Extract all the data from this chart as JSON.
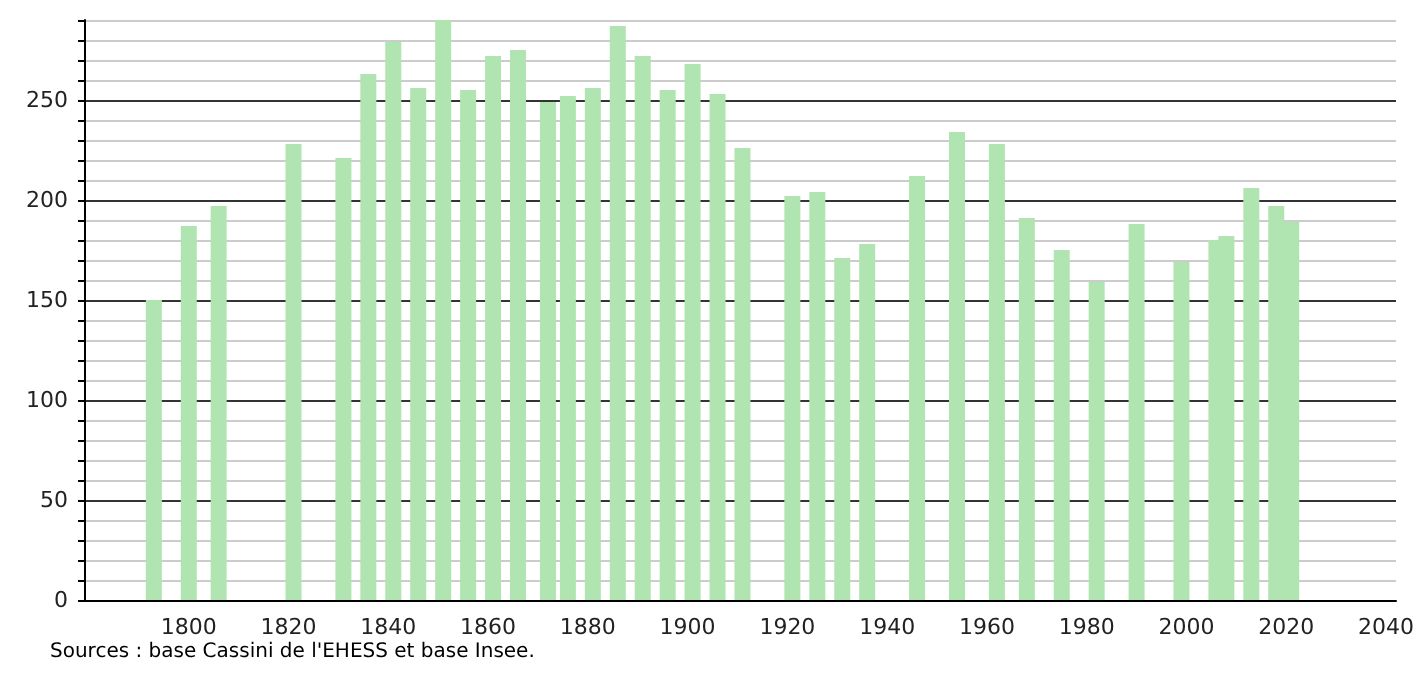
{
  "chart_data": {
    "type": "bar",
    "x": [
      1793,
      1800,
      1806,
      1821,
      1831,
      1836,
      1841,
      1846,
      1851,
      1856,
      1861,
      1866,
      1872,
      1876,
      1881,
      1886,
      1891,
      1896,
      1901,
      1906,
      1911,
      1921,
      1926,
      1931,
      1936,
      1946,
      1954,
      1962,
      1968,
      1975,
      1982,
      1990,
      1999,
      2006,
      2008,
      2013,
      2018,
      2021
    ],
    "values": [
      150,
      187,
      197,
      228,
      221,
      263,
      279,
      256,
      290,
      255,
      272,
      275,
      249,
      252,
      256,
      287,
      272,
      255,
      268,
      253,
      226,
      202,
      204,
      171,
      178,
      212,
      234,
      228,
      191,
      175,
      159,
      188,
      169,
      180,
      182,
      206,
      197,
      189
    ],
    "color": "#b0e4b0",
    "xlim": [
      1779,
      2042
    ],
    "xticks": [
      1800,
      1820,
      1840,
      1860,
      1880,
      1900,
      1920,
      1940,
      1960,
      1980,
      2000,
      2020,
      2040
    ],
    "ylim": [
      0,
      290
    ],
    "yticks": [
      0,
      {
        "value": 10,
        "label": null
      },
      {
        "value": 20,
        "label": null
      },
      {
        "value": 30,
        "label": null
      },
      {
        "value": 40,
        "label": null
      },
      50,
      {
        "value": 60,
        "label": null
      },
      {
        "value": 70,
        "label": null
      },
      {
        "value": 80,
        "label": null
      },
      {
        "value": 90,
        "label": null
      },
      100,
      {
        "value": 110,
        "label": null
      },
      {
        "value": 120,
        "label": null
      },
      {
        "value": 130,
        "label": null
      },
      {
        "value": 140,
        "label": null
      },
      150,
      {
        "value": 160,
        "label": null
      },
      {
        "value": 170,
        "label": null
      },
      {
        "value": 180,
        "label": null
      },
      {
        "value": 190,
        "label": null
      },
      200,
      {
        "value": 210,
        "label": null
      },
      {
        "value": 220,
        "label": null
      },
      {
        "value": 230,
        "label": null
      },
      {
        "value": 240,
        "label": null
      },
      250,
      {
        "value": 260,
        "label": null
      },
      {
        "value": 270,
        "label": null
      },
      {
        "value": 280,
        "label": null
      },
      {
        "value": 290,
        "label": null
      }
    ],
    "grid": "y",
    "annotations": [
      "Sources : base Cassini de l'EHESS et base Insee."
    ]
  }
}
